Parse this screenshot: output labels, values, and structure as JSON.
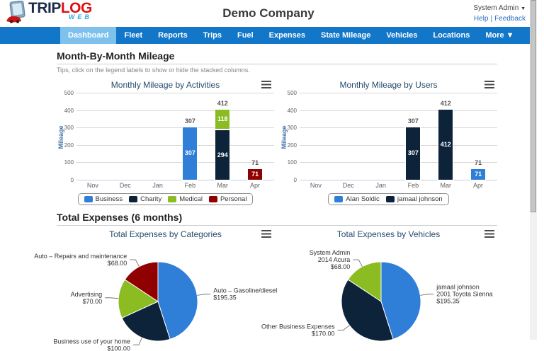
{
  "header": {
    "logo": {
      "trip": "TRIP",
      "log": "LOG",
      "web": "WEB"
    },
    "title": "Demo Company",
    "user_menu": "System Admin",
    "user_menu_arrow": "▼",
    "links": {
      "help": "Help",
      "sep": "|",
      "feedback": "Feedback"
    }
  },
  "nav": {
    "items": [
      {
        "label": "Dashboard",
        "active": true
      },
      {
        "label": "Fleet",
        "active": false
      },
      {
        "label": "Reports",
        "active": false
      },
      {
        "label": "Trips",
        "active": false
      },
      {
        "label": "Fuel",
        "active": false
      },
      {
        "label": "Expenses",
        "active": false
      },
      {
        "label": "State Mileage",
        "active": false
      },
      {
        "label": "Vehicles",
        "active": false
      },
      {
        "label": "Locations",
        "active": false
      },
      {
        "label": "More ▼",
        "active": false
      }
    ]
  },
  "sections": {
    "mileage": {
      "heading": "Month-By-Month Mileage",
      "tip": "Tips, click on the legend labels to show or hide the stacked columns."
    },
    "expenses": {
      "heading": "Total Expenses (6 months)"
    }
  },
  "colors": {
    "nav_bg": "#1277c8",
    "nav_active": "#7fc1ed",
    "series_blue": "#2f7ed8",
    "series_navy": "#0d233a",
    "series_green": "#8bbc21",
    "series_red": "#910000"
  },
  "chart_data": [
    {
      "id": "mileage-by-activities",
      "type": "bar",
      "stacked": true,
      "title": "Monthly Mileage by Activities",
      "ylabel": "Mileage",
      "ylim": [
        0,
        500
      ],
      "yticks": [
        0,
        100,
        200,
        300,
        400,
        500
      ],
      "categories": [
        "Nov",
        "Dec",
        "Jan",
        "Feb",
        "Mar",
        "Apr"
      ],
      "series": [
        {
          "name": "Business",
          "color": "#2f7ed8",
          "values": [
            0,
            0,
            0,
            307,
            0,
            0
          ]
        },
        {
          "name": "Charity",
          "color": "#0d233a",
          "values": [
            0,
            0,
            0,
            0,
            294,
            0
          ]
        },
        {
          "name": "Medical",
          "color": "#8bbc21",
          "values": [
            0,
            0,
            0,
            0,
            118,
            0
          ]
        },
        {
          "name": "Personal",
          "color": "#910000",
          "values": [
            0,
            0,
            0,
            0,
            0,
            71
          ]
        }
      ],
      "stack_totals": [
        null,
        null,
        null,
        307,
        412,
        71
      ],
      "legend_position": "bottom",
      "grid": true
    },
    {
      "id": "mileage-by-users",
      "type": "bar",
      "stacked": true,
      "title": "Monthly Mileage by Users",
      "ylabel": "Mileage",
      "ylim": [
        0,
        500
      ],
      "yticks": [
        0,
        100,
        200,
        300,
        400,
        500
      ],
      "categories": [
        "Nov",
        "Dec",
        "Jan",
        "Feb",
        "Mar",
        "Apr"
      ],
      "series": [
        {
          "name": "Alan Soldic",
          "color": "#2f7ed8",
          "values": [
            0,
            0,
            0,
            0,
            0,
            71
          ]
        },
        {
          "name": "jamaal johnson",
          "color": "#0d233a",
          "values": [
            0,
            0,
            0,
            307,
            412,
            0
          ]
        }
      ],
      "stack_totals": [
        null,
        null,
        null,
        307,
        412,
        71
      ],
      "legend_position": "bottom",
      "grid": true
    },
    {
      "id": "expenses-by-categories",
      "type": "pie",
      "title": "Total Expenses by Categories",
      "slices": [
        {
          "label_lines": [
            "Auto – Gasoline/diesel",
            "$195.35"
          ],
          "value": 195.35,
          "color": "#2f7ed8"
        },
        {
          "label_lines": [
            "Business use of your home",
            "$100.00"
          ],
          "value": 100.0,
          "color": "#0d233a"
        },
        {
          "label_lines": [
            "Advertising",
            "$70.00"
          ],
          "value": 70.0,
          "color": "#8bbc21"
        },
        {
          "label_lines": [
            "Auto – Repairs and maintenance",
            "$68.00"
          ],
          "value": 68.0,
          "color": "#910000"
        }
      ]
    },
    {
      "id": "expenses-by-vehicles",
      "type": "pie",
      "title": "Total Expenses by Vehicles",
      "slices": [
        {
          "label_lines": [
            "jamaal johnson",
            "2001 Toyota Sienna",
            "$195.35"
          ],
          "value": 195.35,
          "color": "#2f7ed8"
        },
        {
          "label_lines": [
            "Other Business Expenses",
            "$170.00"
          ],
          "value": 170.0,
          "color": "#0d233a"
        },
        {
          "label_lines": [
            "System Admin",
            "2014 Acura",
            "$68.00"
          ],
          "value": 68.0,
          "color": "#8bbc21"
        }
      ]
    }
  ]
}
